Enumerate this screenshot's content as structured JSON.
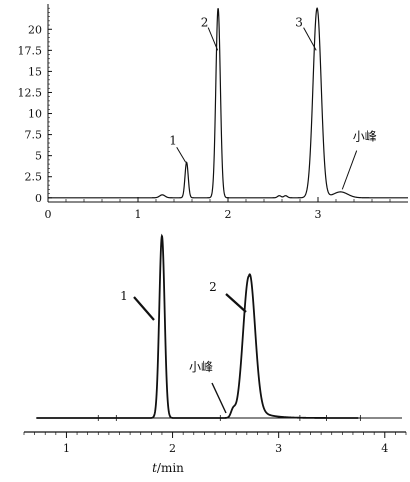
{
  "chart_data": [
    {
      "type": "line",
      "title": "",
      "xlim": [
        0,
        4
      ],
      "ylim": [
        -0.5,
        23
      ],
      "x_ticks": [
        0,
        1,
        2,
        3
      ],
      "x_tick_labels": [
        "0",
        "1",
        "2",
        "3"
      ],
      "y_ticks": [
        0,
        2.5,
        5,
        7.5,
        10,
        12.5,
        15,
        17.5,
        20
      ],
      "y_tick_labels": [
        "0",
        "2.5",
        "5",
        "7.5",
        "10",
        "12.5",
        "15",
        "17.5",
        "20"
      ],
      "grid": false,
      "peaks": [
        {
          "x": 1.27,
          "height": 0.35,
          "width": 0.03
        },
        {
          "x": 1.54,
          "height": 4.2,
          "width": 0.018
        },
        {
          "x": 1.89,
          "height": 22.5,
          "width": 0.025
        },
        {
          "x": 2.57,
          "height": 0.25,
          "width": 0.02
        },
        {
          "x": 2.64,
          "height": 0.25,
          "width": 0.02
        },
        {
          "x": 2.99,
          "height": 22.5,
          "width": 0.045
        },
        {
          "x": 3.25,
          "height": 0.7,
          "width": 0.08
        }
      ],
      "annotations": [
        {
          "text": "1",
          "x": 1.54,
          "y": 4.2
        },
        {
          "text": "2",
          "x": 1.89,
          "y": 19.0
        },
        {
          "text": "3",
          "x": 2.99,
          "y": 19.0
        },
        {
          "text": "小峰",
          "x": 3.27,
          "y": 1.0
        }
      ]
    },
    {
      "type": "line",
      "title": "",
      "xlabel_italic": "t",
      "xlabel_rest": "/min",
      "xlim": [
        0.6,
        4.2
      ],
      "x_ticks": [
        1,
        2,
        3,
        4
      ],
      "x_tick_labels": [
        "1",
        "2",
        "3",
        "4"
      ],
      "peaks": [
        {
          "x": 1.9,
          "height": 1.0,
          "width": 0.025
        },
        {
          "x": 2.72,
          "height": 0.78,
          "width": 0.055
        },
        {
          "x": 2.57,
          "height": 0.04,
          "width": 0.02
        }
      ],
      "annotations": [
        {
          "text": "1",
          "x": 1.9,
          "y": 0.55
        },
        {
          "text": "2",
          "x": 2.7,
          "y": 0.6
        },
        {
          "text": "小峰",
          "x": 2.55,
          "y": 0.05
        }
      ]
    }
  ]
}
